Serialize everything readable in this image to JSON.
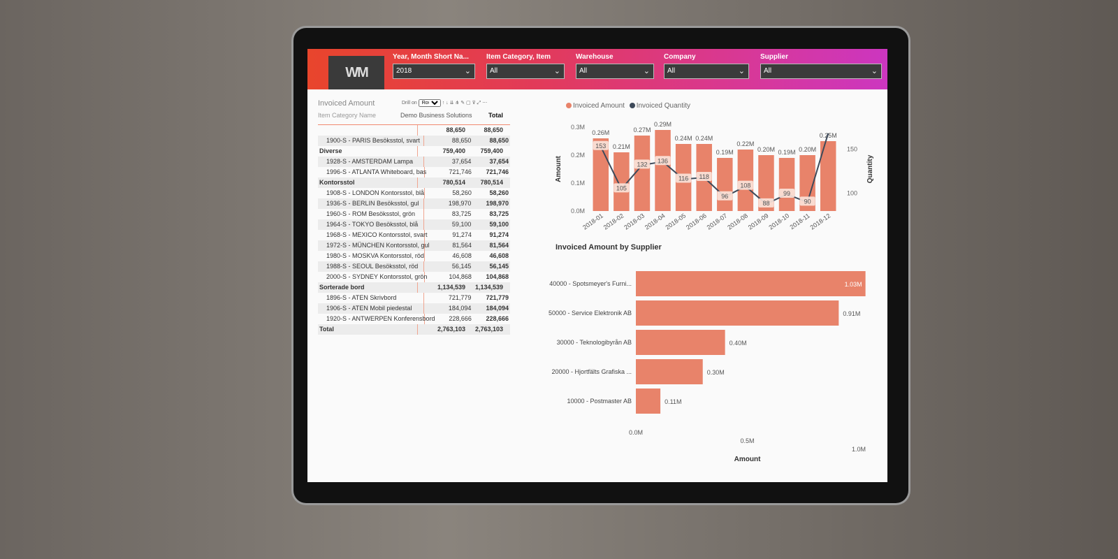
{
  "header": {
    "logo_text": "WM",
    "slicers": [
      {
        "label": "Year, Month Short Na...",
        "value": "2018"
      },
      {
        "label": "Item Category, Item",
        "value": "All"
      },
      {
        "label": "Warehouse",
        "value": "All"
      },
      {
        "label": "Company",
        "value": "All"
      },
      {
        "label": "Supplier",
        "value": "All"
      }
    ],
    "gradient_colors": [
      "#e8452c",
      "#cc36c0"
    ]
  },
  "matrix": {
    "title": "Invoiced Amount",
    "drill_label": "Drill on",
    "drill_value": "Rows",
    "row_header": "Item Category Name",
    "columns": [
      "Demo Business Solutions",
      "Total"
    ],
    "rows": [
      {
        "label": "",
        "group": true,
        "v": "88,650",
        "t": "88,650"
      },
      {
        "label": "1900-S - PARIS Besöksstol, svart",
        "v": "88,650",
        "t": "88,650"
      },
      {
        "label": "Diverse",
        "group": true,
        "v": "759,400",
        "t": "759,400"
      },
      {
        "label": "1928-S - AMSTERDAM Lampa",
        "v": "37,654",
        "t": "37,654"
      },
      {
        "label": "1996-S - ATLANTA Whiteboard, bas",
        "v": "721,746",
        "t": "721,746"
      },
      {
        "label": "Kontorsstol",
        "group": true,
        "v": "780,514",
        "t": "780,514"
      },
      {
        "label": "1908-S - LONDON Kontorsstol, blå",
        "v": "58,260",
        "t": "58,260"
      },
      {
        "label": "1936-S - BERLIN Besöksstol, gul",
        "v": "198,970",
        "t": "198,970"
      },
      {
        "label": "1960-S - ROM Besöksstol, grön",
        "v": "83,725",
        "t": "83,725"
      },
      {
        "label": "1964-S - TOKYO Besöksstol, blå",
        "v": "59,100",
        "t": "59,100"
      },
      {
        "label": "1968-S - MEXICO Kontorsstol, svart",
        "v": "91,274",
        "t": "91,274"
      },
      {
        "label": "1972-S - MÜNCHEN Kontorsstol, gul",
        "v": "81,564",
        "t": "81,564"
      },
      {
        "label": "1980-S - MOSKVA Kontorsstol, röd",
        "v": "46,608",
        "t": "46,608"
      },
      {
        "label": "1988-S - SEOUL Besöksstol, röd",
        "v": "56,145",
        "t": "56,145"
      },
      {
        "label": "2000-S - SYDNEY Kontorsstol, grön",
        "v": "104,868",
        "t": "104,868"
      },
      {
        "label": "Sorterade bord",
        "group": true,
        "v": "1,134,539",
        "t": "1,134,539"
      },
      {
        "label": "1896-S - ATEN Skrivbord",
        "v": "721,779",
        "t": "721,779"
      },
      {
        "label": "1906-S - ATEN Mobil piedestal",
        "v": "184,094",
        "t": "184,094"
      },
      {
        "label": "1920-S - ANTWERPEN Konferensbord",
        "v": "228,666",
        "t": "228,666"
      },
      {
        "label": "Total",
        "group": true,
        "v": "2,763,103",
        "t": "2,763,103"
      }
    ]
  },
  "chart_data": [
    {
      "type": "bar+line",
      "title": "",
      "categories": [
        "2018-01",
        "2018-02",
        "2018-03",
        "2018-04",
        "2018-05",
        "2018-06",
        "2018-07",
        "2018-08",
        "2018-09",
        "2018-10",
        "2018-11",
        "2018-12"
      ],
      "series": [
        {
          "name": "Invoiced Amount",
          "type": "bar",
          "color": "#e8836a",
          "values": [
            0.26,
            0.21,
            0.27,
            0.29,
            0.24,
            0.24,
            0.19,
            0.22,
            0.2,
            0.19,
            0.2,
            0.25
          ],
          "labels": [
            "0.26M",
            "0.21M",
            "0.27M",
            "0.29M",
            "0.24M",
            "0.24M",
            "0.19M",
            "0.22M",
            "0.20M",
            "0.19M",
            "0.20M",
            "0.25M"
          ]
        },
        {
          "name": "Invoiced Quantity",
          "type": "line",
          "color": "#3e4a5a",
          "values": [
            153,
            105,
            132,
            136,
            116,
            118,
            96,
            108,
            88,
            99,
            90,
            168
          ],
          "labels": [
            "153",
            "105",
            "132",
            "136",
            "116",
            "118",
            "96",
            "108",
            "88",
            "99",
            "90",
            ""
          ]
        }
      ],
      "ylabel": "Amount",
      "y2label": "Quantity",
      "yticks": [
        "0.0M",
        "0.1M",
        "0.2M",
        "0.3M"
      ],
      "ylim": [
        0,
        0.3
      ],
      "y2ticks": [
        "100",
        "150"
      ],
      "y2lim": [
        80,
        175
      ],
      "legend": "top-left"
    },
    {
      "type": "bar-horizontal",
      "title": "Invoiced Amount by Supplier",
      "categories": [
        "40000 - Spotsmeyer's Furni...",
        "50000 - Service Elektronik AB",
        "30000 - Teknologibyrån AB",
        "20000 - Hjortfälts Grafiska ...",
        "10000 - Postmaster AB"
      ],
      "values": [
        1.03,
        0.91,
        0.4,
        0.3,
        0.11
      ],
      "labels": [
        "1.03M",
        "0.91M",
        "0.40M",
        "0.30M",
        "0.11M"
      ],
      "xlabel": "Amount",
      "xticks": [
        "0.0M",
        "0.5M",
        "1.0M"
      ],
      "xlim": [
        0,
        1.05
      ],
      "color": "#e8836a"
    }
  ]
}
